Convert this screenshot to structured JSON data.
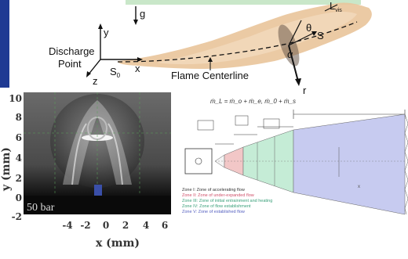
{
  "flame_schematic": {
    "axis_g": "g",
    "axis_y": "y",
    "axis_x": "x",
    "axis_z": "z",
    "source_label": "S",
    "source_subscript": "0",
    "discharge_label_line1": "Discharge",
    "discharge_label_line2": "Point",
    "centerline_label": "Flame Centerline",
    "flame_length_label": "L",
    "flame_length_subscript": "vis",
    "s_label": "S",
    "theta_label": "θ",
    "alpha_label": "α",
    "r_label": "r"
  },
  "schlieren_plot": {
    "overlay_text": "50 bar",
    "y_axis_label": "y (mm)",
    "x_axis_label": "x (mm)",
    "y_ticks": [
      "10",
      "8",
      "6",
      "4",
      "2",
      "0",
      "-2"
    ],
    "x_ticks": [
      "-4",
      "-2",
      "0",
      "2",
      "4",
      "6"
    ]
  },
  "zone_diagram": {
    "equation": "ṁ_L = ṁ_o + ṁ_e, ṁ_0 + ṁ_s",
    "legend": [
      {
        "text": "Zone I:  Zone of accelerating flow",
        "color": "#333333"
      },
      {
        "text": "Zone II:  Zone of under-expanded flow",
        "color": "#d0506a"
      },
      {
        "text": "Zone III:  Zone of initial entrainment and heating",
        "color": "#3aa07a"
      },
      {
        "text": "Zone IV:  Zone of flow establishment",
        "color": "#3aa07a"
      },
      {
        "text": "Zone V:  Zone of established flow",
        "color": "#5560c0"
      }
    ],
    "zone_fills": [
      "#f2c7c7",
      "#c5ecd6",
      "#c7cbf0"
    ]
  }
}
